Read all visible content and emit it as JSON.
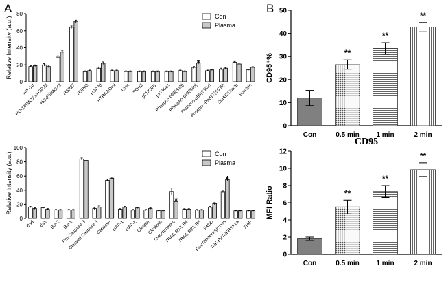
{
  "panels": {
    "a_letter": "A",
    "b_letter": "B"
  },
  "chart_data": [
    {
      "id": "a_top",
      "type": "bar",
      "ylabel": "Relative Intensity (a.u.)",
      "ylim": [
        0,
        80
      ],
      "yticks": [
        0,
        20,
        40,
        60,
        80
      ],
      "legend": [
        "Con",
        "Plasma"
      ],
      "categories": [
        "HIF-1α",
        "HO-1/HMOX1/HSP32",
        "HO-2/HMOX2",
        "HSP27",
        "HSP60",
        "HSP70",
        "HTRA2/Omi",
        "Livin",
        "PON2",
        "p21/CIP1",
        "p27/Kip1",
        "Phospho-p53(S15)",
        "Phospho-p53(S46)",
        "Phospho-p53(S392)",
        "Phospho-Rad17(S635)",
        "SMAC/Diablo",
        "Survivin"
      ],
      "series": [
        {
          "name": "Con",
          "values": [
            18,
            20,
            29,
            64,
            12,
            16,
            13,
            12,
            12,
            12,
            12,
            13,
            17,
            13,
            15,
            23,
            14
          ],
          "errors": [
            1,
            1.5,
            1.5,
            1.5,
            0.8,
            1.5,
            0.8,
            0.8,
            0.8,
            0.8,
            0.8,
            0.8,
            1,
            0.8,
            1,
            1,
            0.8
          ]
        },
        {
          "name": "Plasma",
          "values": [
            19,
            18,
            35,
            71,
            13,
            22,
            13,
            12,
            12,
            12,
            12,
            12,
            22,
            14,
            16,
            21,
            17
          ],
          "errors": [
            1,
            1.5,
            1.5,
            1.5,
            0.8,
            1.5,
            0.8,
            0.8,
            0.8,
            0.8,
            0.8,
            0.8,
            1.2,
            0.8,
            1,
            1,
            0.8
          ]
        }
      ],
      "annotations": [
        {
          "category": "Phospho-p53(S46)",
          "text": "*"
        }
      ]
    },
    {
      "id": "a_bottom",
      "type": "bar",
      "ylabel": "Relative Intensity (a.u.)",
      "ylim": [
        0,
        100
      ],
      "yticks": [
        0,
        20,
        40,
        60,
        80,
        100
      ],
      "legend": [
        "Con",
        "Plasma"
      ],
      "categories": [
        "Bad",
        "Bax",
        "Bcl-2",
        "Bcl-x",
        "Pro-Caspase-3",
        "Cleaved Caspase-3",
        "Catalase",
        "cIAP-1",
        "cIAP-2",
        "Claspin",
        "Clusterin",
        "Cytochrome c",
        "TRAIL R1/DR4",
        "TRAIL R2/DR5",
        "FADD",
        "Fas/TNFRSF6/CD95",
        "TNF RI/TNFRSF1A",
        "XIAP"
      ],
      "series": [
        {
          "name": "Con",
          "values": [
            16,
            15,
            12,
            12,
            84,
            14,
            54,
            13,
            12,
            12,
            11,
            38,
            13,
            12,
            16,
            38,
            11,
            11
          ],
          "errors": [
            1,
            1,
            0.8,
            0.8,
            1.5,
            1.5,
            1.5,
            0.8,
            0.8,
            0.8,
            0.8,
            5,
            0.8,
            0.8,
            1,
            2,
            0.6,
            0.6
          ]
        },
        {
          "name": "Plasma",
          "values": [
            14,
            13,
            12,
            12,
            82,
            16,
            57,
            16,
            15,
            14,
            11,
            24,
            13,
            12,
            21,
            55,
            11,
            11
          ],
          "errors": [
            1,
            1,
            0.8,
            0.8,
            2,
            1.5,
            1.5,
            1,
            1,
            1,
            0.8,
            2,
            0.8,
            0.8,
            1.5,
            2,
            0.6,
            0.6
          ]
        }
      ],
      "annotations": [
        {
          "category": "Cytochrome c",
          "text": "*"
        },
        {
          "category": "Fas/TNFRSF6/CD95",
          "text": "*"
        }
      ]
    },
    {
      "id": "b_top",
      "type": "bar",
      "title": "",
      "ylabel": "CD95⁺%",
      "ylim": [
        0,
        50
      ],
      "yticks": [
        0,
        10,
        20,
        30,
        40,
        50
      ],
      "categories": [
        "Con",
        "0.5 min",
        "1 min",
        "2 min"
      ],
      "values": [
        12,
        26.5,
        33.5,
        42.7
      ],
      "errors": [
        3.3,
        2,
        2.5,
        2
      ],
      "patterns": [
        "solid-gray",
        "dots",
        "hlines",
        "vlines"
      ],
      "annotations": [
        "",
        "**",
        "**",
        "**"
      ]
    },
    {
      "id": "b_bottom",
      "type": "bar",
      "title": "CD95",
      "ylabel": "MFI Ratio",
      "ylim": [
        0,
        12
      ],
      "yticks": [
        0,
        2,
        4,
        6,
        8,
        10,
        12
      ],
      "categories": [
        "Con",
        "0.5 min",
        "1 min",
        "2 min"
      ],
      "values": [
        1.8,
        5.5,
        7.3,
        9.85
      ],
      "errors": [
        0.2,
        0.8,
        0.7,
        0.8
      ],
      "patterns": [
        "solid-gray",
        "dots",
        "hlines",
        "vlines"
      ],
      "annotations": [
        "",
        "**",
        "**",
        "**"
      ]
    }
  ]
}
